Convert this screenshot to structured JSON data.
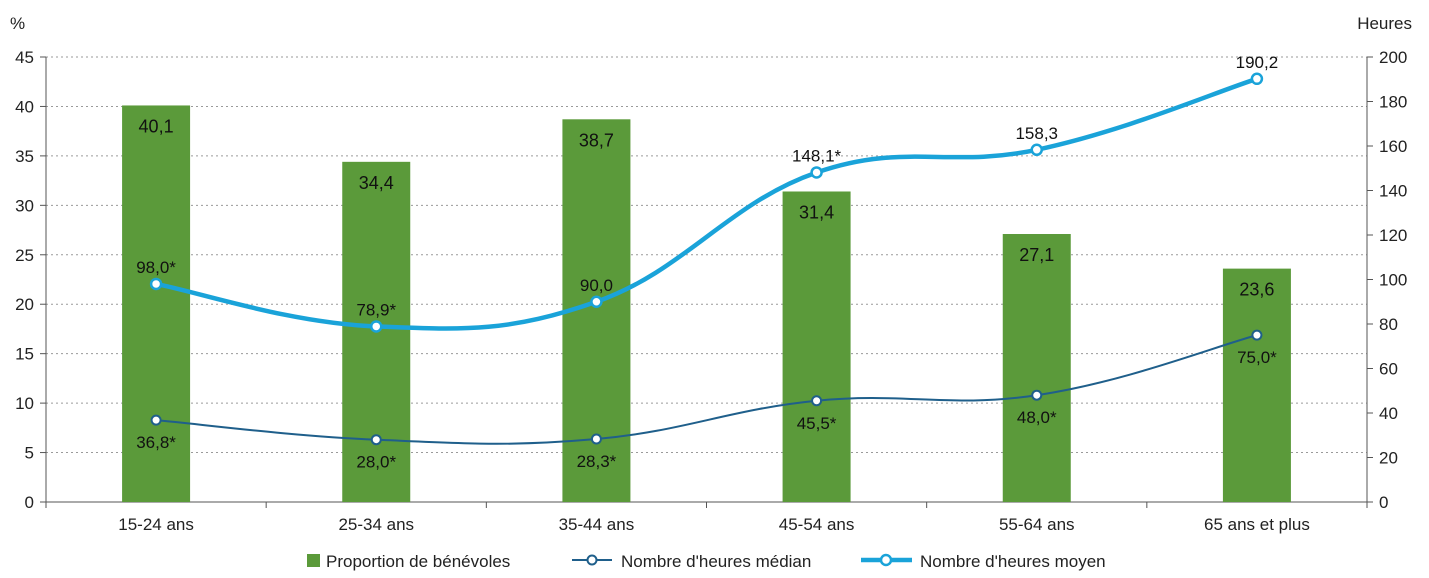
{
  "chart_data": {
    "type": "bar",
    "categories": [
      "15-24 ans",
      "25-34 ans",
      "35-44 ans",
      "45-54 ans",
      "55-64 ans",
      "65 ans et plus"
    ],
    "left_axis": {
      "unit": "%",
      "ylim": [
        0,
        45
      ],
      "ticks": [
        "0",
        "5",
        "10",
        "15",
        "20",
        "25",
        "30",
        "35",
        "40",
        "45"
      ]
    },
    "right_axis": {
      "unit": "Heures",
      "ylim": [
        0,
        200
      ],
      "ticks": [
        "0",
        "20",
        "40",
        "60",
        "80",
        "100",
        "120",
        "140",
        "160",
        "180",
        "200"
      ]
    },
    "grid": "horizontal-dashed",
    "legend_position": "bottom",
    "series": [
      {
        "name": "Proportion de bénévoles",
        "kind": "bar",
        "axis": "left",
        "color": "#5b9a3a",
        "values": [
          40.1,
          34.4,
          38.7,
          31.4,
          27.1,
          23.6
        ],
        "labels": [
          "40,1",
          "34,4",
          "38,7",
          "31,4",
          "27,1",
          "23,6"
        ]
      },
      {
        "name": "Nombre d'heures médian",
        "kind": "line",
        "axis": "right",
        "color": "#1f5f8b",
        "values": [
          36.8,
          28.0,
          28.3,
          45.5,
          48.0,
          75.0
        ],
        "labels": [
          "36,8*",
          "28,0*",
          "28,3*",
          "45,5*",
          "48,0*",
          "75,0*"
        ]
      },
      {
        "name": "Nombre d'heures moyen",
        "kind": "line",
        "axis": "right",
        "color": "#1aa3d9",
        "values": [
          98.0,
          78.9,
          90.0,
          148.1,
          158.3,
          190.2
        ],
        "labels": [
          "98,0*",
          "78,9*",
          "90,0",
          "148,1*",
          "158,3",
          "190,2"
        ]
      }
    ]
  }
}
